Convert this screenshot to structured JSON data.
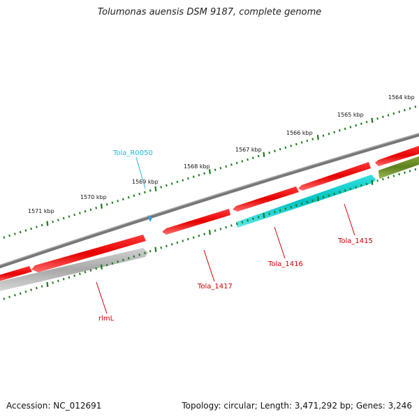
{
  "header": {
    "title": "Tolumonas auensis DSM 9187, complete genome"
  },
  "footer": {
    "accession": "Accession: NC_012691",
    "stats": "Topology: circular; Length: 3,471,292 bp; Genes: 3,246"
  },
  "ruler": {
    "ticks": [
      {
        "label": "1564 kbp"
      },
      {
        "label": "1565 kbp"
      },
      {
        "label": "1566 kbp"
      },
      {
        "label": "1567 kbp"
      },
      {
        "label": "1568 kbp"
      },
      {
        "label": "1569 kbp"
      },
      {
        "label": "1570 kbp"
      },
      {
        "label": "1571 kbp"
      }
    ]
  },
  "feature_labels": {
    "tola_r0050": "Tola_R0050",
    "tola_1415": "Tola_1415",
    "tola_1416": "Tola_1416",
    "tola_1417": "Tola_1417",
    "rlml": "rlmL"
  },
  "colors": {
    "cds_red": "#e60000",
    "rna_cyan": "#00c8c8",
    "trna_blue": "#2aa0e0",
    "olive": "#6b8e23",
    "grey_feature": "#b0b0b0",
    "backbone": "#7a7a7a",
    "tick_green": "#1f7a1f"
  }
}
